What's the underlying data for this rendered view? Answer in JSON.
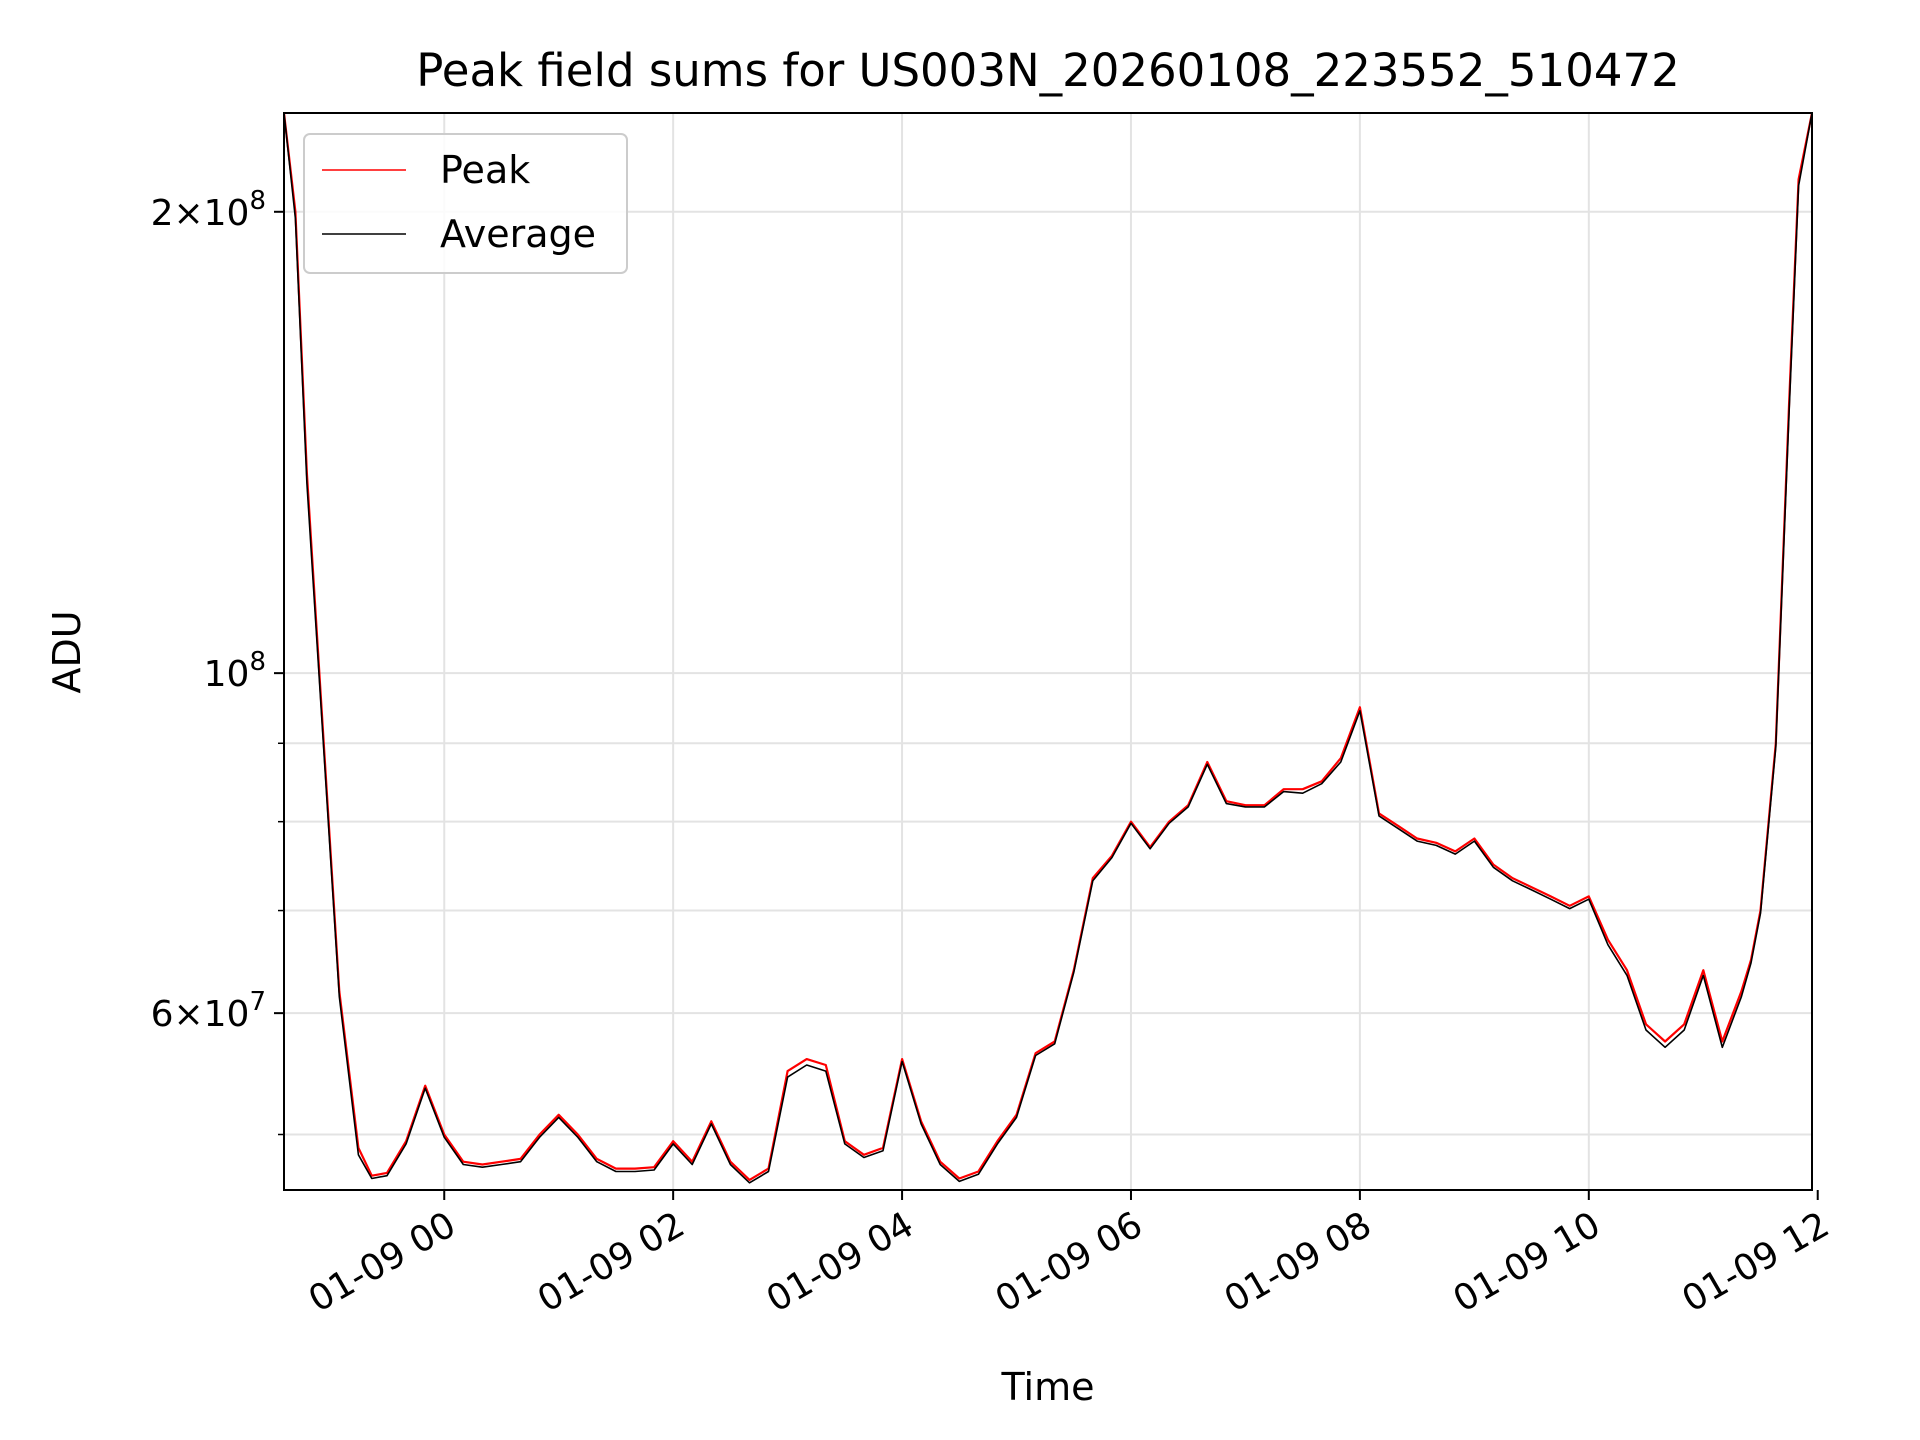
{
  "chart_data": {
    "type": "line",
    "title": "Peak field sums for US003N_20260108_223552_510472",
    "xlabel": "Time",
    "ylabel": "ADU",
    "y_scale": "log",
    "ylim": [
      46000000,
      232000000
    ],
    "xlim": [
      "2026-01-08 22:36",
      "2026-01-09 11:57"
    ],
    "grid": true,
    "legend_position": "upper-left",
    "x_tick_labels": [
      "01-09 00",
      "01-09 02",
      "01-09 04",
      "01-09 06",
      "01-09 08",
      "01-09 10",
      "01-09 12"
    ],
    "x_ticks": [
      "2026-01-09 00:00",
      "2026-01-09 02:00",
      "2026-01-09 04:00",
      "2026-01-09 06:00",
      "2026-01-09 08:00",
      "2026-01-09 10:00",
      "2026-01-09 12:00"
    ],
    "y_major_ticks": [
      {
        "value": 200000000,
        "mantissa": "2",
        "exponent": "8"
      },
      {
        "value": 100000000,
        "mantissa": "",
        "exponent": "8"
      },
      {
        "value": 60000000,
        "mantissa": "6",
        "exponent": "7"
      }
    ],
    "y_minor_ticks": [
      50000000,
      70000000,
      80000000,
      90000000
    ],
    "series": [
      {
        "name": "Peak",
        "color": "#ff0000",
        "x": [
          "2026-01-08 22:36",
          "2026-01-08 22:42",
          "2026-01-08 22:48",
          "2026-01-08 22:55",
          "2026-01-08 23:05",
          "2026-01-08 23:15",
          "2026-01-08 23:22",
          "2026-01-08 23:30",
          "2026-01-08 23:40",
          "2026-01-08 23:50",
          "2026-01-09 00:00",
          "2026-01-09 00:10",
          "2026-01-09 00:20",
          "2026-01-09 00:30",
          "2026-01-09 00:40",
          "2026-01-09 00:50",
          "2026-01-09 01:00",
          "2026-01-09 01:10",
          "2026-01-09 01:20",
          "2026-01-09 01:30",
          "2026-01-09 01:40",
          "2026-01-09 01:50",
          "2026-01-09 02:00",
          "2026-01-09 02:10",
          "2026-01-09 02:20",
          "2026-01-09 02:30",
          "2026-01-09 02:40",
          "2026-01-09 02:50",
          "2026-01-09 03:00",
          "2026-01-09 03:10",
          "2026-01-09 03:20",
          "2026-01-09 03:30",
          "2026-01-09 03:40",
          "2026-01-09 03:50",
          "2026-01-09 04:00",
          "2026-01-09 04:10",
          "2026-01-09 04:20",
          "2026-01-09 04:30",
          "2026-01-09 04:40",
          "2026-01-09 04:50",
          "2026-01-09 05:00",
          "2026-01-09 05:10",
          "2026-01-09 05:20",
          "2026-01-09 05:30",
          "2026-01-09 05:40",
          "2026-01-09 05:50",
          "2026-01-09 06:00",
          "2026-01-09 06:10",
          "2026-01-09 06:20",
          "2026-01-09 06:30",
          "2026-01-09 06:40",
          "2026-01-09 06:50",
          "2026-01-09 07:00",
          "2026-01-09 07:10",
          "2026-01-09 07:20",
          "2026-01-09 07:30",
          "2026-01-09 07:40",
          "2026-01-09 07:50",
          "2026-01-09 08:00",
          "2026-01-09 08:10",
          "2026-01-09 08:20",
          "2026-01-09 08:30",
          "2026-01-09 08:40",
          "2026-01-09 08:50",
          "2026-01-09 09:00",
          "2026-01-09 09:10",
          "2026-01-09 09:20",
          "2026-01-09 09:30",
          "2026-01-09 09:40",
          "2026-01-09 09:50",
          "2026-01-09 10:00",
          "2026-01-09 10:10",
          "2026-01-09 10:20",
          "2026-01-09 10:30",
          "2026-01-09 10:40",
          "2026-01-09 10:50",
          "2026-01-09 11:00",
          "2026-01-09 11:10",
          "2026-01-09 11:20",
          "2026-01-09 11:25",
          "2026-01-09 11:30",
          "2026-01-09 11:38",
          "2026-01-09 11:45",
          "2026-01-09 11:50",
          "2026-01-09 11:57"
        ],
        "values": [
          232000000,
          200000000,
          135000000,
          98000000,
          62000000,
          49000000,
          47000000,
          47200000,
          49500000,
          53800000,
          50000000,
          48000000,
          47800000,
          48000000,
          48200000,
          50000000,
          51500000,
          50000000,
          48200000,
          47500000,
          47500000,
          47600000,
          49500000,
          48000000,
          51000000,
          48000000,
          46700000,
          47500000,
          55000000,
          56000000,
          55500000,
          49500000,
          48500000,
          49000000,
          56000000,
          51000000,
          48000000,
          46800000,
          47300000,
          49500000,
          51500000,
          56500000,
          57500000,
          64000000,
          73500000,
          76000000,
          80000000,
          77000000,
          80000000,
          82000000,
          87500000,
          82500000,
          82000000,
          82000000,
          84000000,
          84000000,
          85000000,
          88000000,
          95000000,
          81000000,
          79500000,
          78000000,
          77500000,
          76500000,
          78000000,
          75000000,
          73500000,
          72500000,
          71500000,
          70500000,
          71500000,
          67000000,
          64000000,
          59000000,
          57500000,
          59000000,
          64000000,
          57500000,
          62000000,
          65000000,
          70000000,
          90000000,
          150000000,
          210000000,
          232000000
        ]
      },
      {
        "name": "Average",
        "color": "#000000",
        "x": [
          "2026-01-08 22:36",
          "2026-01-08 22:42",
          "2026-01-08 22:48",
          "2026-01-08 22:55",
          "2026-01-08 23:05",
          "2026-01-08 23:15",
          "2026-01-08 23:22",
          "2026-01-08 23:30",
          "2026-01-08 23:40",
          "2026-01-08 23:50",
          "2026-01-09 00:00",
          "2026-01-09 00:10",
          "2026-01-09 00:20",
          "2026-01-09 00:30",
          "2026-01-09 00:40",
          "2026-01-09 00:50",
          "2026-01-09 01:00",
          "2026-01-09 01:10",
          "2026-01-09 01:20",
          "2026-01-09 01:30",
          "2026-01-09 01:40",
          "2026-01-09 01:50",
          "2026-01-09 02:00",
          "2026-01-09 02:10",
          "2026-01-09 02:20",
          "2026-01-09 02:30",
          "2026-01-09 02:40",
          "2026-01-09 02:50",
          "2026-01-09 03:00",
          "2026-01-09 03:10",
          "2026-01-09 03:20",
          "2026-01-09 03:30",
          "2026-01-09 03:40",
          "2026-01-09 03:50",
          "2026-01-09 04:00",
          "2026-01-09 04:10",
          "2026-01-09 04:20",
          "2026-01-09 04:30",
          "2026-01-09 04:40",
          "2026-01-09 04:50",
          "2026-01-09 05:00",
          "2026-01-09 05:10",
          "2026-01-09 05:20",
          "2026-01-09 05:30",
          "2026-01-09 05:40",
          "2026-01-09 05:50",
          "2026-01-09 06:00",
          "2026-01-09 06:10",
          "2026-01-09 06:20",
          "2026-01-09 06:30",
          "2026-01-09 06:40",
          "2026-01-09 06:50",
          "2026-01-09 07:00",
          "2026-01-09 07:10",
          "2026-01-09 07:20",
          "2026-01-09 07:30",
          "2026-01-09 07:40",
          "2026-01-09 07:50",
          "2026-01-09 08:00",
          "2026-01-09 08:10",
          "2026-01-09 08:20",
          "2026-01-09 08:30",
          "2026-01-09 08:40",
          "2026-01-09 08:50",
          "2026-01-09 09:00",
          "2026-01-09 09:10",
          "2026-01-09 09:20",
          "2026-01-09 09:30",
          "2026-01-09 09:40",
          "2026-01-09 09:50",
          "2026-01-09 10:00",
          "2026-01-09 10:10",
          "2026-01-09 10:20",
          "2026-01-09 10:30",
          "2026-01-09 10:40",
          "2026-01-09 10:50",
          "2026-01-09 11:00",
          "2026-01-09 11:10",
          "2026-01-09 11:20",
          "2026-01-09 11:25",
          "2026-01-09 11:30",
          "2026-01-09 11:38",
          "2026-01-09 11:45",
          "2026-01-09 11:50",
          "2026-01-09 11:57"
        ],
        "values": [
          232000000,
          198000000,
          133000000,
          97000000,
          61500000,
          48500000,
          46800000,
          47000000,
          49300000,
          53600000,
          49800000,
          47800000,
          47600000,
          47800000,
          48000000,
          49800000,
          51300000,
          49800000,
          48000000,
          47300000,
          47300000,
          47400000,
          49300000,
          47800000,
          50800000,
          47800000,
          46500000,
          47300000,
          54500000,
          55500000,
          55000000,
          49300000,
          48300000,
          48800000,
          55800000,
          50800000,
          47800000,
          46600000,
          47100000,
          49300000,
          51300000,
          56300000,
          57300000,
          63800000,
          73200000,
          75800000,
          79800000,
          76800000,
          79800000,
          81800000,
          87200000,
          82200000,
          81800000,
          81800000,
          83700000,
          83500000,
          84700000,
          87500000,
          94500000,
          80700000,
          79200000,
          77700000,
          77200000,
          76200000,
          77700000,
          74700000,
          73200000,
          72200000,
          71200000,
          70200000,
          71200000,
          66500000,
          63500000,
          58500000,
          57000000,
          58500000,
          63500000,
          57000000,
          61500000,
          64700000,
          69700000,
          89500000,
          148000000,
          208000000,
          232000000
        ]
      }
    ]
  }
}
